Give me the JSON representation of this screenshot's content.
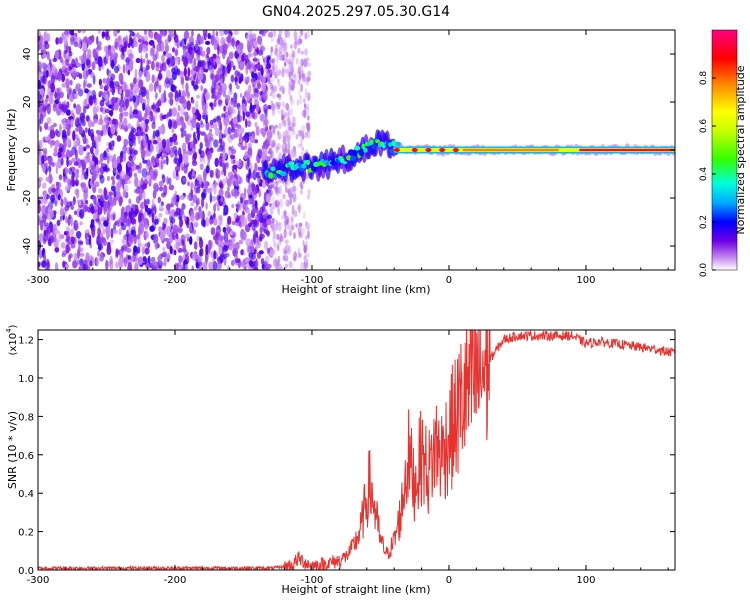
{
  "title": "GN04.2025.297.05.30.G14",
  "chart_data": [
    {
      "type": "heatmap",
      "xlabel": "Height of straight line (km)",
      "ylabel": "Frequency (Hz)",
      "xlim": [
        -300,
        165
      ],
      "ylim": [
        -50,
        50
      ],
      "xticks": [
        -300,
        -200,
        -100,
        0,
        100
      ],
      "xtick_labels": [
        "-300",
        "-200",
        "-100",
        "0",
        "100"
      ],
      "yticks": [
        -40,
        -20,
        0,
        20,
        40
      ],
      "ytick_labels": [
        "-40",
        "-20",
        "0",
        "20",
        "40"
      ],
      "ridge": {
        "name": "Doppler trace",
        "x": [
          -130,
          -120,
          -110,
          -100,
          -90,
          -80,
          -70,
          -60,
          -50,
          -40,
          -30,
          -20,
          -10,
          0,
          20,
          40,
          60,
          80,
          100,
          130,
          165
        ],
        "y": [
          -10,
          -8,
          -7,
          -7,
          -6,
          -5,
          -2,
          1,
          3,
          1,
          0,
          0,
          0,
          0,
          0,
          0,
          0,
          0,
          0,
          0,
          0
        ]
      },
      "noise_region_x": [
        -300,
        -130
      ],
      "colorbar": {
        "label": "Normalized spectral amplitude",
        "range": [
          0.0,
          1.0
        ],
        "ticks": [
          0.0,
          0.2,
          0.4,
          0.6,
          0.8
        ],
        "tick_labels": [
          "0.0",
          "0.2",
          "0.4",
          "0.6",
          "0.8"
        ],
        "colors": [
          "#ffffff",
          "#c88cf0",
          "#6e00e6",
          "#0000ff",
          "#00aaff",
          "#00ffdc",
          "#32ff00",
          "#c8ff00",
          "#ffff00",
          "#ff9600",
          "#ff0000",
          "#ff0080"
        ]
      }
    },
    {
      "type": "line",
      "xlabel": "Height of straight line (km)",
      "ylabel": "SNR (10 * v/v)",
      "multiplier_label": "(x10",
      "multiplier_exp": "4",
      "multiplier_close": ")",
      "xlim": [
        -300,
        165
      ],
      "ylim": [
        0.0,
        1.25
      ],
      "xticks": [
        -300,
        -200,
        -100,
        0,
        100
      ],
      "xtick_labels": [
        "-300",
        "-200",
        "-100",
        "0",
        "100"
      ],
      "yticks": [
        0.0,
        0.2,
        0.4,
        0.6,
        0.8,
        1.0,
        1.2
      ],
      "ytick_labels": [
        "0.0",
        "0.2",
        "0.4",
        "0.6",
        "0.8",
        "1.0",
        "1.2"
      ],
      "color": "#e8322e",
      "series": [
        {
          "name": "SNR",
          "x": [
            -300,
            -200,
            -130,
            -115,
            -110,
            -100,
            -90,
            -80,
            -75,
            -70,
            -65,
            -62,
            -58,
            -55,
            -50,
            -45,
            -40,
            -35,
            -30,
            -25,
            -20,
            -15,
            -10,
            -5,
            0,
            5,
            10,
            15,
            20,
            25,
            30,
            35,
            40,
            50,
            60,
            70,
            80,
            90,
            95,
            100,
            110,
            120,
            130,
            140,
            150,
            165
          ],
          "y": [
            0.01,
            0.01,
            0.01,
            0.02,
            0.06,
            0.02,
            0.03,
            0.05,
            0.07,
            0.12,
            0.2,
            0.3,
            0.45,
            0.35,
            0.15,
            0.08,
            0.15,
            0.3,
            0.6,
            0.45,
            0.6,
            0.5,
            0.65,
            0.6,
            0.7,
            0.78,
            0.9,
            0.95,
            1.0,
            1.05,
            1.1,
            1.15,
            1.2,
            1.22,
            1.22,
            1.22,
            1.22,
            1.22,
            1.2,
            1.18,
            1.19,
            1.18,
            1.17,
            1.16,
            1.15,
            1.13
          ]
        }
      ]
    }
  ]
}
